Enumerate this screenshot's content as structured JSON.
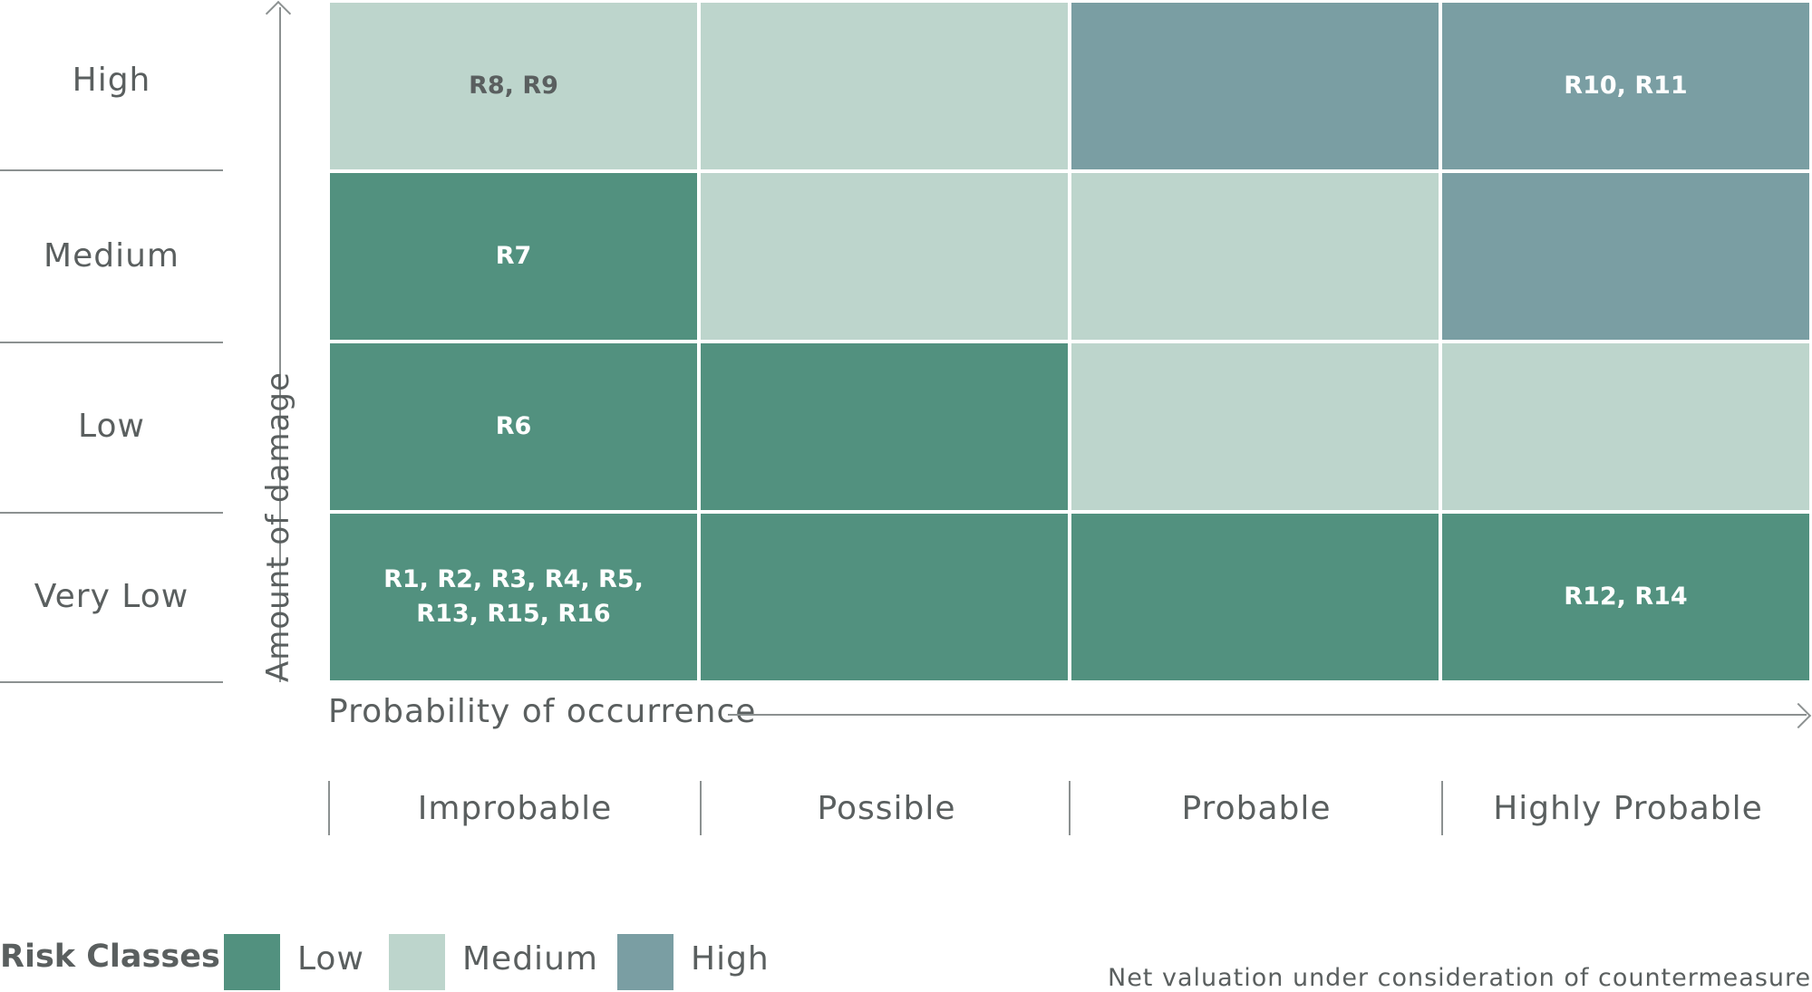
{
  "colors": {
    "low": "#52917f",
    "medium": "#bdd5cc",
    "high": "#7a9ea3",
    "text_on_dark": "#ffffff",
    "text_on_light": "#5a5f5f"
  },
  "y_axis": {
    "label": "Amount of damage",
    "levels": [
      "High",
      "Medium",
      "Low",
      "Very Low"
    ]
  },
  "x_axis": {
    "label": "Probability of occurrence",
    "levels": [
      "Improbable",
      "Possible",
      "Probable",
      "Highly Probable"
    ]
  },
  "matrix": [
    [
      {
        "class": "medium",
        "text": "R8, R9"
      },
      {
        "class": "medium",
        "text": ""
      },
      {
        "class": "high",
        "text": ""
      },
      {
        "class": "high",
        "text": "R10, R11"
      }
    ],
    [
      {
        "class": "low",
        "text": "R7"
      },
      {
        "class": "medium",
        "text": ""
      },
      {
        "class": "medium",
        "text": ""
      },
      {
        "class": "high",
        "text": ""
      }
    ],
    [
      {
        "class": "low",
        "text": "R6"
      },
      {
        "class": "low",
        "text": ""
      },
      {
        "class": "medium",
        "text": ""
      },
      {
        "class": "medium",
        "text": ""
      }
    ],
    [
      {
        "class": "low",
        "text": "R1, R2, R3, R4, R5,\nR13, R15, R16"
      },
      {
        "class": "low",
        "text": ""
      },
      {
        "class": "low",
        "text": ""
      },
      {
        "class": "low",
        "text": "R12, R14"
      }
    ]
  ],
  "legend": {
    "title": "Risk Classes",
    "items": [
      {
        "key": "low",
        "label": "Low"
      },
      {
        "key": "medium",
        "label": "Medium"
      },
      {
        "key": "high",
        "label": "High"
      }
    ]
  },
  "footnote": "Net valuation under consideration of countermeasures"
}
